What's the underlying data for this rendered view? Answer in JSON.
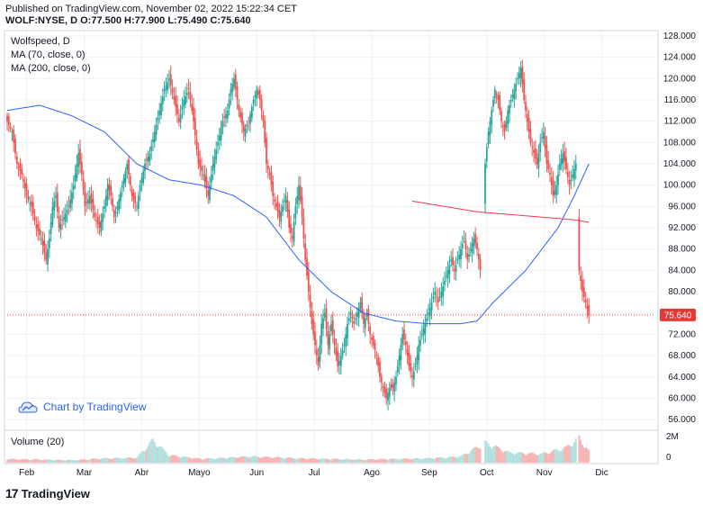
{
  "header": {
    "published_line": "Published on TradingView.com, November 02, 2022 15:22:34 CET",
    "symbol_line": "WOLF:NYSE, D O:77.500 H:77.900 L:75.490 C:75.640"
  },
  "legend": {
    "symbol": "Wolfspeed, D",
    "ma70": "MA (70, close, 0)",
    "ma200": "MA (200, close, 0)",
    "volume": "Volume (20)"
  },
  "attribution": {
    "text": "Chart by TradingView",
    "icon": "tradingview-cloud-icon"
  },
  "footer": {
    "logo_mark": "17",
    "logo_text": "TradingView"
  },
  "price_label": "75.640",
  "colors": {
    "up": "#26a69a",
    "down": "#ef5350",
    "ma70": "#2962ff",
    "ma200": "#f23645",
    "last_price": "#e53935",
    "volume_up": "#b2dfdb",
    "volume_down": "#f7b2b2"
  },
  "chart_data": {
    "type": "candlestick",
    "ylim": [
      54,
      129
    ],
    "y_ticks": [
      "128.000",
      "124.000",
      "120.000",
      "116.000",
      "112.000",
      "108.000",
      "104.000",
      "100.000",
      "96.000",
      "92.000",
      "88.000",
      "84.000",
      "80.000",
      "76.000",
      "72.000",
      "68.000",
      "64.000",
      "60.000",
      "56.000"
    ],
    "x_ticks": [
      "Feb",
      "Mar",
      "Abr",
      "Mayo",
      "Jun",
      "Jul",
      "Ago",
      "Sep",
      "Oct",
      "Nov",
      "Dic"
    ],
    "volume_ticks": [
      "2M",
      "0"
    ],
    "last_close": 75.64,
    "closes": [
      [
        0,
        112
      ],
      [
        3,
        110
      ],
      [
        6,
        104
      ],
      [
        9,
        102
      ],
      [
        12,
        98
      ],
      [
        15,
        96
      ],
      [
        18,
        92
      ],
      [
        21,
        90
      ],
      [
        24,
        86
      ],
      [
        26,
        90
      ],
      [
        28,
        96
      ],
      [
        30,
        98
      ],
      [
        32,
        92
      ],
      [
        35,
        94
      ],
      [
        38,
        96
      ],
      [
        41,
        100
      ],
      [
        44,
        106
      ],
      [
        46,
        102
      ],
      [
        48,
        96
      ],
      [
        51,
        98
      ],
      [
        54,
        94
      ],
      [
        57,
        92
      ],
      [
        60,
        96
      ],
      [
        62,
        100
      ],
      [
        64,
        98
      ],
      [
        66,
        94
      ],
      [
        68,
        96
      ],
      [
        71,
        100
      ],
      [
        74,
        104
      ],
      [
        77,
        98
      ],
      [
        80,
        96
      ],
      [
        82,
        100
      ],
      [
        85,
        104
      ],
      [
        88,
        106
      ],
      [
        91,
        110
      ],
      [
        94,
        114
      ],
      [
        97,
        118
      ],
      [
        100,
        120
      ],
      [
        103,
        116
      ],
      [
        106,
        112
      ],
      [
        109,
        116
      ],
      [
        112,
        118
      ],
      [
        115,
        112
      ],
      [
        118,
        104
      ],
      [
        121,
        102
      ],
      [
        124,
        98
      ],
      [
        127,
        104
      ],
      [
        130,
        108
      ],
      [
        133,
        112
      ],
      [
        136,
        114
      ],
      [
        138,
        118
      ],
      [
        140,
        120
      ],
      [
        143,
        114
      ],
      [
        146,
        110
      ],
      [
        149,
        112
      ],
      [
        152,
        116
      ],
      [
        154,
        118
      ],
      [
        156,
        116
      ],
      [
        158,
        112
      ],
      [
        160,
        104
      ],
      [
        162,
        102
      ],
      [
        164,
        98
      ],
      [
        166,
        96
      ],
      [
        168,
        94
      ],
      [
        170,
        96
      ],
      [
        172,
        98
      ],
      [
        174,
        92
      ],
      [
        176,
        90
      ],
      [
        178,
        96
      ],
      [
        180,
        100
      ],
      [
        182,
        94
      ],
      [
        184,
        86
      ],
      [
        186,
        80
      ],
      [
        188,
        74
      ],
      [
        190,
        70
      ],
      [
        192,
        66
      ],
      [
        194,
        74
      ],
      [
        196,
        76
      ],
      [
        198,
        70
      ],
      [
        200,
        74
      ],
      [
        202,
        70
      ],
      [
        204,
        66
      ],
      [
        206,
        68
      ],
      [
        208,
        70
      ],
      [
        210,
        74
      ],
      [
        212,
        76
      ],
      [
        214,
        74
      ],
      [
        216,
        76
      ],
      [
        218,
        78
      ],
      [
        220,
        74
      ],
      [
        222,
        76
      ],
      [
        224,
        72
      ],
      [
        226,
        70
      ],
      [
        228,
        68
      ],
      [
        230,
        64
      ],
      [
        232,
        62
      ],
      [
        234,
        60
      ],
      [
        236,
        62
      ],
      [
        238,
        62
      ],
      [
        240,
        64
      ],
      [
        242,
        68
      ],
      [
        244,
        72
      ],
      [
        246,
        70
      ],
      [
        248,
        66
      ],
      [
        250,
        64
      ],
      [
        252,
        66
      ],
      [
        254,
        70
      ],
      [
        256,
        72
      ],
      [
        258,
        74
      ],
      [
        260,
        76
      ],
      [
        262,
        78
      ],
      [
        264,
        80
      ],
      [
        266,
        78
      ],
      [
        268,
        80
      ],
      [
        270,
        82
      ],
      [
        272,
        84
      ],
      [
        274,
        86
      ],
      [
        276,
        84
      ],
      [
        278,
        86
      ],
      [
        280,
        88
      ],
      [
        282,
        90
      ],
      [
        284,
        86
      ],
      [
        286,
        88
      ],
      [
        288,
        90
      ],
      [
        290,
        88
      ],
      [
        292,
        84
      ],
      [
        295,
        104
      ],
      [
        297,
        110
      ],
      [
        299,
        114
      ],
      [
        301,
        118
      ],
      [
        303,
        116
      ],
      [
        305,
        112
      ],
      [
        307,
        110
      ],
      [
        309,
        114
      ],
      [
        311,
        116
      ],
      [
        313,
        118
      ],
      [
        315,
        120
      ],
      [
        317,
        122
      ],
      [
        319,
        116
      ],
      [
        321,
        112
      ],
      [
        323,
        108
      ],
      [
        325,
        106
      ],
      [
        327,
        104
      ],
      [
        329,
        108
      ],
      [
        331,
        110
      ],
      [
        333,
        104
      ],
      [
        335,
        102
      ],
      [
        337,
        98
      ],
      [
        339,
        100
      ],
      [
        341,
        104
      ],
      [
        343,
        106
      ],
      [
        345,
        103
      ],
      [
        347,
        100
      ],
      [
        349,
        102
      ],
      [
        351,
        104
      ],
      [
        353,
        84
      ],
      [
        355,
        80
      ],
      [
        357,
        78
      ],
      [
        359,
        75.64
      ]
    ],
    "ma70": [
      [
        0,
        114
      ],
      [
        20,
        115
      ],
      [
        40,
        113
      ],
      [
        60,
        110
      ],
      [
        80,
        104
      ],
      [
        100,
        101
      ],
      [
        120,
        100
      ],
      [
        140,
        98
      ],
      [
        160,
        94
      ],
      [
        180,
        86
      ],
      [
        200,
        80
      ],
      [
        220,
        76
      ],
      [
        240,
        74.5
      ],
      [
        260,
        74
      ],
      [
        280,
        74
      ],
      [
        290,
        74.5
      ],
      [
        300,
        78
      ],
      [
        320,
        84
      ],
      [
        340,
        92
      ],
      [
        350,
        98
      ],
      [
        359,
        104
      ]
    ],
    "ma200": [
      [
        250,
        97
      ],
      [
        270,
        96
      ],
      [
        290,
        95
      ],
      [
        310,
        94.5
      ],
      [
        330,
        94
      ],
      [
        350,
        93.5
      ],
      [
        359,
        93
      ]
    ],
    "volume": [
      [
        0,
        0.3
      ],
      [
        20,
        0.25
      ],
      [
        40,
        0.2
      ],
      [
        60,
        0.35
      ],
      [
        80,
        0.4
      ],
      [
        90,
        1.8
      ],
      [
        100,
        0.6
      ],
      [
        120,
        0.3
      ],
      [
        150,
        0.5
      ],
      [
        180,
        0.35
      ],
      [
        200,
        0.3
      ],
      [
        220,
        0.25
      ],
      [
        240,
        0.3
      ],
      [
        260,
        0.35
      ],
      [
        280,
        0.5
      ],
      [
        295,
        1.6
      ],
      [
        310,
        0.8
      ],
      [
        330,
        0.7
      ],
      [
        345,
        1.2
      ],
      [
        353,
        2.0
      ],
      [
        359,
        0.9
      ]
    ]
  }
}
